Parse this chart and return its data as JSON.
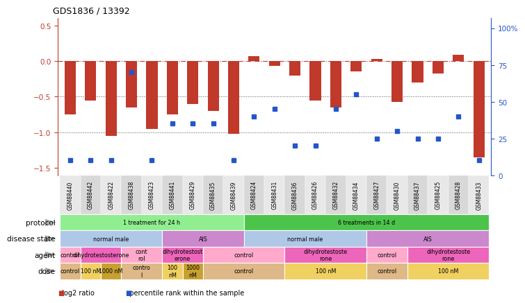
{
  "title": "GDS1836 / 13392",
  "samples": [
    "GSM88440",
    "GSM88442",
    "GSM88422",
    "GSM88438",
    "GSM88423",
    "GSM88441",
    "GSM88429",
    "GSM88435",
    "GSM88439",
    "GSM88424",
    "GSM88431",
    "GSM88436",
    "GSM88426",
    "GSM88432",
    "GSM88434",
    "GSM88427",
    "GSM88430",
    "GSM88437",
    "GSM88425",
    "GSM88428",
    "GSM88433"
  ],
  "log2_ratio": [
    -0.75,
    -0.55,
    -1.05,
    -0.65,
    -0.95,
    -0.75,
    -0.6,
    -0.7,
    -1.02,
    0.07,
    -0.07,
    -0.2,
    -0.55,
    -0.65,
    -0.15,
    0.03,
    -0.57,
    -0.3,
    -0.17,
    0.09,
    -1.35
  ],
  "percentile": [
    10,
    10,
    10,
    70,
    10,
    35,
    35,
    35,
    10,
    40,
    45,
    20,
    20,
    45,
    55,
    25,
    30,
    25,
    25,
    40,
    10
  ],
  "bar_color": "#c0392b",
  "dot_color": "#2455c8",
  "ref_line_color": "#c0392b",
  "dotted_line_color": "#555555",
  "bg_color": "#f0f0f0",
  "ylim_left": [
    -1.6,
    0.6
  ],
  "ylim_right": [
    0,
    106.67
  ],
  "yticks_left": [
    0.5,
    0.0,
    -0.5,
    -1.0,
    -1.5
  ],
  "yticks_right": [
    0,
    25,
    50,
    75,
    100
  ],
  "ytick_right_labels": [
    "0",
    "25",
    "50",
    "75",
    "100%"
  ],
  "protocol_groups": [
    {
      "label": "1 treatment for 24 h",
      "start": 0,
      "end": 8,
      "color": "#90ee90"
    },
    {
      "label": "6 treatments in 14 d",
      "start": 9,
      "end": 20,
      "color": "#4cc44c"
    }
  ],
  "disease_state_groups": [
    {
      "label": "normal male",
      "start": 0,
      "end": 4,
      "color": "#b0c8e8"
    },
    {
      "label": "AIS",
      "start": 5,
      "end": 8,
      "color": "#cc88cc"
    },
    {
      "label": "normal male",
      "start": 9,
      "end": 14,
      "color": "#b0c8e8"
    },
    {
      "label": "AIS",
      "start": 15,
      "end": 20,
      "color": "#cc88cc"
    }
  ],
  "agent_groups": [
    {
      "label": "control",
      "start": 0,
      "end": 0,
      "color": "#ffaacc"
    },
    {
      "label": "dihydrotestosterone",
      "start": 1,
      "end": 2,
      "color": "#ee66bb"
    },
    {
      "label": "cont\nrol",
      "start": 3,
      "end": 4,
      "color": "#ffaacc"
    },
    {
      "label": "dihydrotestost\nerone",
      "start": 5,
      "end": 6,
      "color": "#ee66bb"
    },
    {
      "label": "control",
      "start": 7,
      "end": 10,
      "color": "#ffaacc"
    },
    {
      "label": "dihydrotestoste\nrone",
      "start": 11,
      "end": 14,
      "color": "#ee66bb"
    },
    {
      "label": "control",
      "start": 15,
      "end": 16,
      "color": "#ffaacc"
    },
    {
      "label": "dihydrotestoste\nrone",
      "start": 17,
      "end": 20,
      "color": "#ee66bb"
    }
  ],
  "dose_groups": [
    {
      "label": "control",
      "start": 0,
      "end": 0,
      "color": "#deb887"
    },
    {
      "label": "100 nM",
      "start": 1,
      "end": 1,
      "color": "#f0d060"
    },
    {
      "label": "1000 nM",
      "start": 2,
      "end": 2,
      "color": "#c8a030"
    },
    {
      "label": "contro\nl",
      "start": 3,
      "end": 4,
      "color": "#deb887"
    },
    {
      "label": "100\nnM",
      "start": 5,
      "end": 5,
      "color": "#f0d060"
    },
    {
      "label": "1000\nnM",
      "start": 6,
      "end": 6,
      "color": "#c8a030"
    },
    {
      "label": "control",
      "start": 7,
      "end": 10,
      "color": "#deb887"
    },
    {
      "label": "100 nM",
      "start": 11,
      "end": 14,
      "color": "#f0d060"
    },
    {
      "label": "control",
      "start": 15,
      "end": 16,
      "color": "#deb887"
    },
    {
      "label": "100 nM",
      "start": 17,
      "end": 20,
      "color": "#f0d060"
    }
  ],
  "row_labels_left": [
    "protocol",
    "disease state",
    "agent",
    "dose"
  ],
  "legend_items": [
    {
      "color": "#c0392b",
      "label": "log2 ratio"
    },
    {
      "color": "#2455c8",
      "label": "percentile rank within the sample"
    }
  ]
}
